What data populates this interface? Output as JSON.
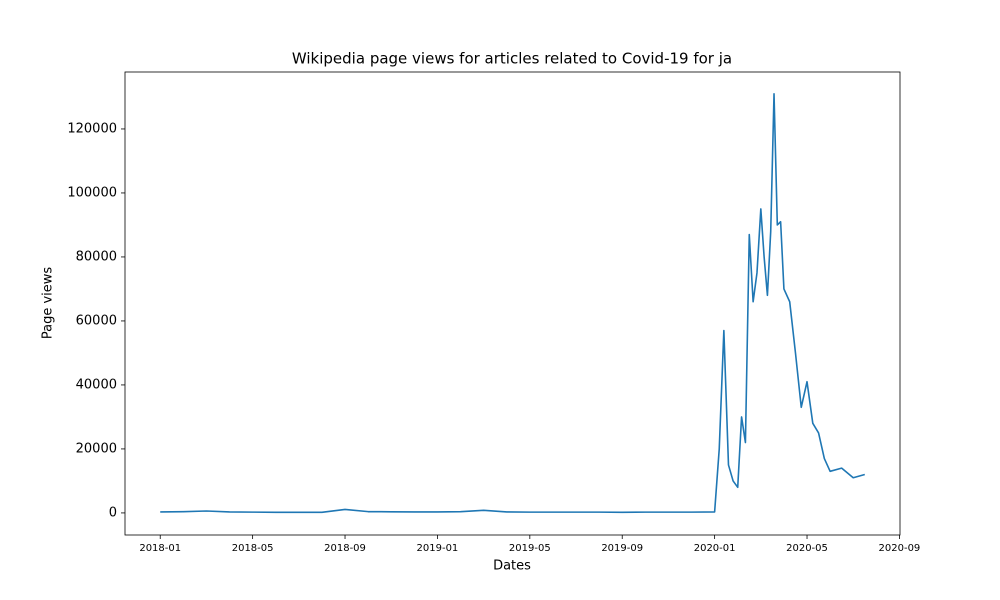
{
  "chart_data": {
    "type": "line",
    "title": "Wikipedia page views for articles related to Covid-19 for ja",
    "xlabel": "Dates",
    "ylabel": "Page views",
    "x": [
      "2018-01",
      "2018-02",
      "2018-03",
      "2018-04",
      "2018-05",
      "2018-06",
      "2018-07",
      "2018-08",
      "2018-09",
      "2018-10",
      "2018-11",
      "2018-12",
      "2019-01",
      "2019-02",
      "2019-03",
      "2019-04",
      "2019-05",
      "2019-06",
      "2019-07",
      "2019-08",
      "2019-09",
      "2019-10",
      "2019-11",
      "2019-12",
      "2020-01",
      "2020-01",
      "2020-01",
      "2020-01",
      "2020-01",
      "2020-02",
      "2020-02",
      "2020-02",
      "2020-02",
      "2020-02",
      "2020-02",
      "2020-03",
      "2020-03",
      "2020-03",
      "2020-03",
      "2020-03",
      "2020-03",
      "2020-03",
      "2020-04",
      "2020-04",
      "2020-04",
      "2020-04",
      "2020-05",
      "2020-05",
      "2020-05",
      "2020-05",
      "2020-06",
      "2020-06",
      "2020-07",
      "2020-07"
    ],
    "values": [
      300,
      400,
      600,
      300,
      250,
      200,
      200,
      200,
      1100,
      400,
      350,
      300,
      300,
      400,
      800,
      300,
      250,
      250,
      250,
      250,
      200,
      250,
      250,
      250,
      300,
      20000,
      57000,
      15000,
      10000,
      8000,
      30000,
      22000,
      87000,
      66000,
      75000,
      95000,
      80000,
      68000,
      88000,
      131000,
      90000,
      91000,
      70000,
      66000,
      50000,
      33000,
      41000,
      28000,
      25000,
      17000,
      13000,
      14000,
      11000,
      12000
    ],
    "color": "#1f77b4",
    "xticks": [
      "2018-01",
      "2018-05",
      "2018-09",
      "2019-01",
      "2019-05",
      "2019-09",
      "2020-01",
      "2020-05",
      "2020-09"
    ],
    "ylim": [
      -6900,
      137800
    ],
    "yticks": [
      0,
      20000,
      40000,
      60000,
      80000,
      100000,
      120000
    ],
    "grid": false
  }
}
